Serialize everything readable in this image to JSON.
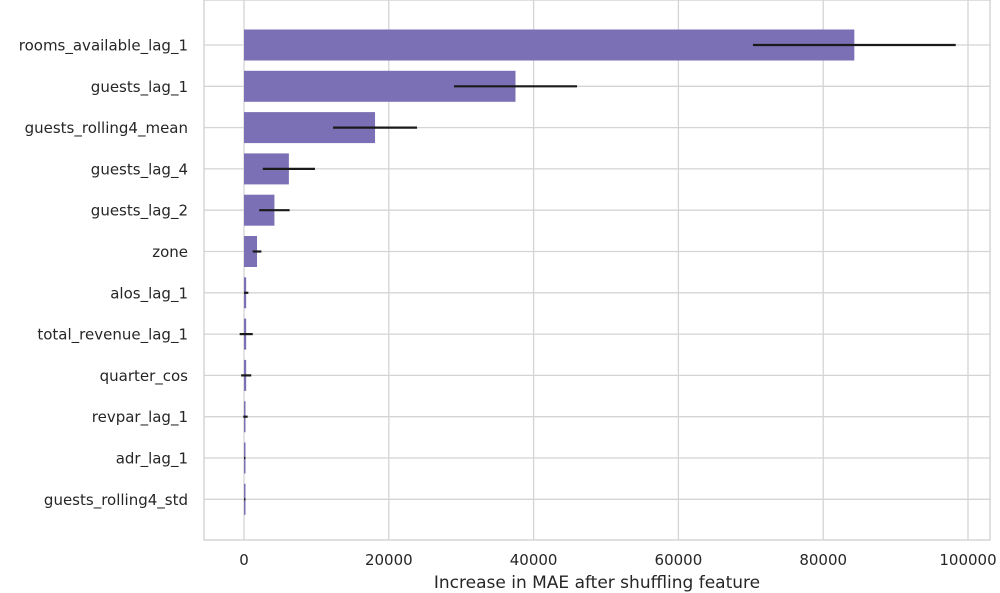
{
  "chart_data": {
    "type": "bar",
    "orientation": "horizontal",
    "title": "",
    "xlabel": "Increase in MAE after shuffling feature",
    "ylabel": "",
    "xlim": [
      -5500,
      103500
    ],
    "xticks": [
      0,
      20000,
      40000,
      60000,
      80000,
      100000
    ],
    "xtick_labels": [
      "0",
      "20000",
      "40000",
      "60000",
      "80000",
      "100000"
    ],
    "grid": true,
    "bar_color": "#7b70b5",
    "error_color": "#1a1a1a",
    "categories": [
      "rooms_available_lag_1",
      "guests_lag_1",
      "guests_rolling4_mean",
      "guests_lag_4",
      "guests_lag_2",
      "zone",
      "alos_lag_1",
      "total_revenue_lag_1",
      "quarter_cos",
      "revpar_lag_1",
      "adr_lag_1",
      "guests_rolling4_std"
    ],
    "values": [
      84300,
      37500,
      18100,
      6200,
      4200,
      1800,
      300,
      300,
      300,
      200,
      100,
      100
    ],
    "errors": [
      14000,
      8500,
      5800,
      3600,
      2100,
      600,
      300,
      900,
      700,
      300,
      100,
      100
    ]
  }
}
